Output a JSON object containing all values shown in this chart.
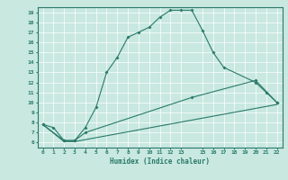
{
  "xlabel": "Humidex (Indice chaleur)",
  "bg_color": "#c8e8e0",
  "line_color": "#2a7a6a",
  "grid_color": "#ffffff",
  "xlim": [
    -0.5,
    22.5
  ],
  "ylim": [
    5.5,
    19.5
  ],
  "xticks": [
    0,
    1,
    2,
    3,
    4,
    5,
    6,
    7,
    8,
    9,
    10,
    11,
    12,
    13,
    15,
    16,
    17,
    18,
    19,
    20,
    21,
    22
  ],
  "yticks": [
    6,
    7,
    8,
    9,
    10,
    11,
    12,
    13,
    14,
    15,
    16,
    17,
    18,
    19
  ],
  "line1_x": [
    0,
    1,
    2,
    3,
    4,
    5,
    6,
    7,
    8,
    9,
    10,
    11,
    12,
    13,
    14,
    15,
    16,
    17,
    20,
    21,
    22
  ],
  "line1_y": [
    7.8,
    7.5,
    6.2,
    6.2,
    7.5,
    9.5,
    13.0,
    14.5,
    16.5,
    17.0,
    17.5,
    18.5,
    19.2,
    19.2,
    19.2,
    17.2,
    15.0,
    13.5,
    12.0,
    11.0,
    10.0
  ],
  "line2_x": [
    0,
    2,
    3,
    4,
    14,
    20,
    22
  ],
  "line2_y": [
    7.8,
    6.2,
    6.2,
    7.0,
    10.5,
    12.2,
    10.0
  ],
  "line3_x": [
    0,
    2,
    3,
    22
  ],
  "line3_y": [
    7.8,
    6.1,
    6.1,
    9.8
  ]
}
